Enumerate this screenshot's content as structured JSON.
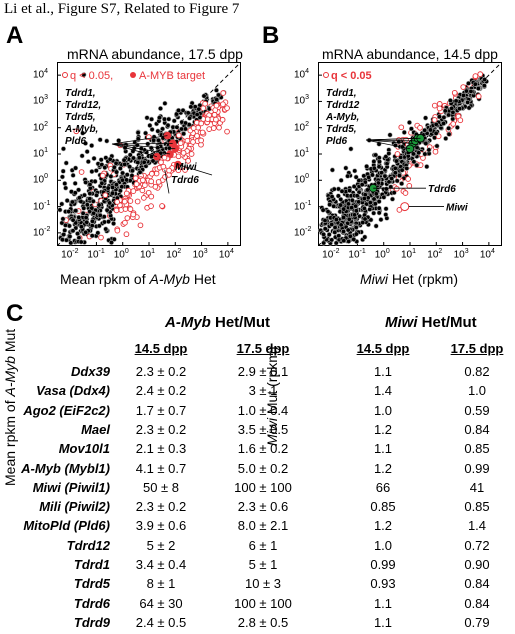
{
  "header": "Li et al., Figure S7, Related to Figure 7",
  "panelA": {
    "letter": "A",
    "title": "mRNA abundance, 17.5 dpp",
    "legend_q": "q < 0.05,",
    "legend_target": "A-MYB target",
    "ylabel_pre": "Mean rpkm of ",
    "ylabel_it": "A-Myb",
    "ylabel_post": " Mut",
    "xlabel_pre": "Mean rpkm of ",
    "xlabel_it": "A-Myb",
    "xlabel_post": " Het",
    "ann1": [
      "Tdrd1,",
      "Tdrd12,",
      "Tdrd5,",
      "A-Myb,",
      "Pld6"
    ],
    "ann_miwi": "Miwi",
    "ann_tdrd6": "Tdrd6"
  },
  "panelB": {
    "letter": "B",
    "title": "mRNA abundance, 14.5 dpp",
    "legend_q": "q < 0.05",
    "ylabel_it": "Miwi",
    "ylabel_post": " Mut (rpkm)",
    "xlabel_it": "Miwi",
    "xlabel_post": " Het (rpkm)",
    "ann1": [
      "Tdrd1,",
      "Tdrd12",
      "A-Myb,",
      "Tdrd5,",
      "Pld6"
    ],
    "ann_tdrd6": "Tdrd6",
    "ann_miwi": "Miwi"
  },
  "ticks": {
    "y": [
      "10",
      "10",
      "10",
      "10",
      "10",
      "10",
      "10"
    ],
    "y_exp": [
      "4",
      "3",
      "2",
      "1",
      "0",
      "-1",
      "-2"
    ],
    "x_exp": [
      "-2",
      "-1",
      "0",
      "1",
      "2",
      "3",
      "4"
    ]
  },
  "panelC": {
    "letter": "C",
    "group1": {
      "it": "A-Myb",
      "rest": " Het/Mut"
    },
    "group2": {
      "it": "Miwi",
      "rest": " Het/Mut"
    },
    "cols": [
      "14.5 dpp",
      "17.5 dpp",
      "14.5 dpp",
      "17.5 dpp"
    ],
    "rows": [
      {
        "gene": "Ddx39",
        "v": [
          "2.3 ± 0.2",
          "2.9 ± 0.1",
          "1.1",
          "0.82"
        ]
      },
      {
        "gene": "Vasa (Ddx4)",
        "v": [
          "2.4 ± 0.2",
          "3 ± 1",
          "1.4",
          "1.0"
        ]
      },
      {
        "gene": "Ago2 (EiF2c2)",
        "v": [
          "1.7 ± 0.7",
          "1.0 ± 0.4",
          "1.0",
          "0.59"
        ]
      },
      {
        "gene": "Mael",
        "v": [
          "2.3 ± 0.2",
          "3.5 ± 0.5",
          "1.2",
          "0.84"
        ]
      },
      {
        "gene": "Mov10l1",
        "v": [
          "2.1 ± 0.3",
          "1.6 ± 0.2",
          "1.1",
          "0.85"
        ]
      },
      {
        "gene": "A-Myb (Mybl1)",
        "v": [
          "4.1 ± 0.7",
          "5.0 ± 0.2",
          "1.2",
          "0.99"
        ]
      },
      {
        "gene": "Miwi (Piwil1)",
        "v": [
          "50 ± 8",
          "100 ± 100",
          "66",
          "41"
        ]
      },
      {
        "gene": "Mili (Piwil2)",
        "v": [
          "2.3 ± 0.2",
          "2.3 ± 0.6",
          "0.85",
          "0.85"
        ]
      },
      {
        "gene": "MitoPld (Pld6)",
        "v": [
          "3.9 ± 0.6",
          "8.0 ± 2.1",
          "1.2",
          "1.4"
        ]
      },
      {
        "gene": "Tdrd12",
        "v": [
          "5 ± 2",
          "6 ± 1",
          "1.0",
          "0.72"
        ]
      },
      {
        "gene": "Tdrd1",
        "v": [
          "3.4 ± 0.4",
          "5 ± 1",
          "0.99",
          "0.90"
        ]
      },
      {
        "gene": "Tdrd5",
        "v": [
          "8 ± 1",
          "10 ± 3",
          "0.93",
          "0.84"
        ]
      },
      {
        "gene": "Tdrd6",
        "v": [
          "64 ± 30",
          "100 ± 100",
          "1.1",
          "0.84"
        ]
      },
      {
        "gene": "Tdrd9",
        "v": [
          "2.4 ± 0.5",
          "2.8 ± 0.5",
          "1.1",
          "0.79"
        ]
      }
    ]
  },
  "colors": {
    "red": "#e8343a",
    "green": "#1a9a3a",
    "gray": "#aaaaaa"
  }
}
